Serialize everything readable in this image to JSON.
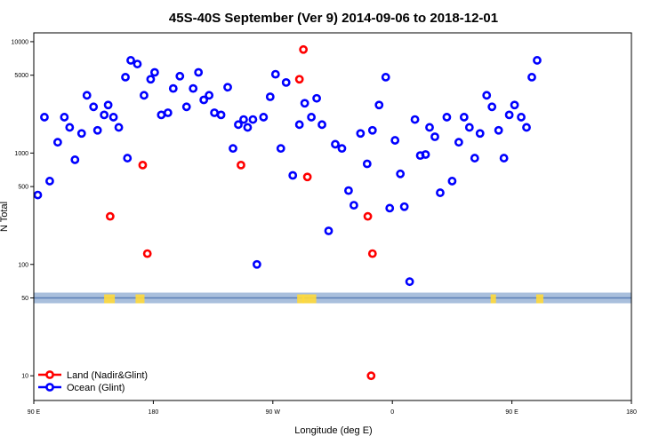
{
  "chart_data": {
    "type": "scatter",
    "title": "45S-40S September (Ver 9)   2014-09-06 to 2018-12-01",
    "xlabel": "Longitude (deg E)",
    "ylabel": "N Total",
    "x_axis": {
      "range": [
        90,
        450
      ],
      "ticks": [
        {
          "value": 90,
          "label": "90 E"
        },
        {
          "value": 180,
          "label": "180"
        },
        {
          "value": 270,
          "label": "90 W"
        },
        {
          "value": 360,
          "label": "0"
        },
        {
          "value": 450,
          "label": "90 E"
        },
        {
          "value": 540,
          "label": "180"
        }
      ],
      "display_range": [
        90,
        540
      ]
    },
    "y_axis": {
      "scale": "log",
      "range": [
        6,
        12000
      ],
      "ticks": [
        {
          "value": 10,
          "label": "10"
        },
        {
          "value": 50,
          "label": "50"
        },
        {
          "value": 100,
          "label": "100"
        },
        {
          "value": 500,
          "label": "500"
        },
        {
          "value": 1000,
          "label": "1000"
        },
        {
          "value": 5000,
          "label": "5000"
        },
        {
          "value": 10000,
          "label": "10000"
        }
      ]
    },
    "grid": false,
    "legend_position": "bottom-left",
    "series": [
      {
        "name": "Land (Nadir&Glint)",
        "color": "#ff0000",
        "points": [
          [
            147.5,
            270
          ],
          [
            172,
            780
          ],
          [
            175.5,
            125
          ],
          [
            290,
            4600
          ],
          [
            293,
            8500
          ],
          [
            296,
            610
          ],
          [
            246,
            780
          ],
          [
            341.5,
            270
          ],
          [
            344,
            10
          ],
          [
            345,
            125
          ]
        ]
      },
      {
        "name": "Ocean (Glint)",
        "color": "#0000ff",
        "points": [
          [
            93,
            420
          ],
          [
            98,
            2100
          ],
          [
            102,
            560
          ],
          [
            108,
            1250
          ],
          [
            113,
            2100
          ],
          [
            117,
            1700
          ],
          [
            121,
            870
          ],
          [
            126,
            1500
          ],
          [
            130,
            3300
          ],
          [
            135,
            2600
          ],
          [
            138,
            1600
          ],
          [
            143,
            2200
          ],
          [
            146,
            2700
          ],
          [
            150,
            2100
          ],
          [
            154,
            1700
          ],
          [
            159,
            4800
          ],
          [
            160.5,
            900
          ],
          [
            163,
            6800
          ],
          [
            168,
            6300
          ],
          [
            173,
            3300
          ],
          [
            178,
            4600
          ],
          [
            181,
            5300
          ],
          [
            186,
            2200
          ],
          [
            191,
            2300
          ],
          [
            195,
            3800
          ],
          [
            200,
            4900
          ],
          [
            205,
            2600
          ],
          [
            210,
            3800
          ],
          [
            214,
            5300
          ],
          [
            218,
            3000
          ],
          [
            222,
            3300
          ],
          [
            226,
            2300
          ],
          [
            231,
            2200
          ],
          [
            236,
            3900
          ],
          [
            240,
            1100
          ],
          [
            244,
            1800
          ],
          [
            248,
            2000
          ],
          [
            251,
            1700
          ],
          [
            255,
            2000
          ],
          [
            258,
            100
          ],
          [
            263,
            2100
          ],
          [
            268,
            3200
          ],
          [
            272,
            5100
          ],
          [
            276,
            1100
          ],
          [
            280,
            4300
          ],
          [
            285,
            630
          ],
          [
            290,
            1800
          ],
          [
            294,
            2800
          ],
          [
            299,
            2100
          ],
          [
            303,
            3100
          ],
          [
            307,
            1800
          ],
          [
            312,
            200
          ],
          [
            317,
            1200
          ],
          [
            322,
            1100
          ],
          [
            327,
            460
          ],
          [
            331,
            340
          ],
          [
            336,
            1500
          ],
          [
            341,
            800
          ],
          [
            345,
            1600
          ],
          [
            350,
            2700
          ],
          [
            355,
            4800
          ],
          [
            358,
            320
          ],
          [
            362,
            1300
          ],
          [
            366,
            650
          ],
          [
            369,
            330
          ],
          [
            373,
            70
          ],
          [
            377,
            2000
          ],
          [
            381,
            950
          ],
          [
            385,
            970
          ],
          [
            388,
            1700
          ],
          [
            392,
            1400
          ],
          [
            396,
            440
          ],
          [
            401,
            2100
          ],
          [
            405,
            560
          ],
          [
            410,
            1250
          ],
          [
            414,
            2100
          ],
          [
            418,
            1700
          ],
          [
            422,
            900
          ],
          [
            426,
            1500
          ],
          [
            431,
            3300
          ],
          [
            435,
            2600
          ],
          [
            440,
            1600
          ],
          [
            444,
            900
          ],
          [
            448,
            2200
          ],
          [
            452,
            2700
          ],
          [
            457,
            2100
          ],
          [
            461,
            1700
          ],
          [
            465,
            4800
          ],
          [
            469,
            6800
          ]
        ]
      }
    ]
  }
}
